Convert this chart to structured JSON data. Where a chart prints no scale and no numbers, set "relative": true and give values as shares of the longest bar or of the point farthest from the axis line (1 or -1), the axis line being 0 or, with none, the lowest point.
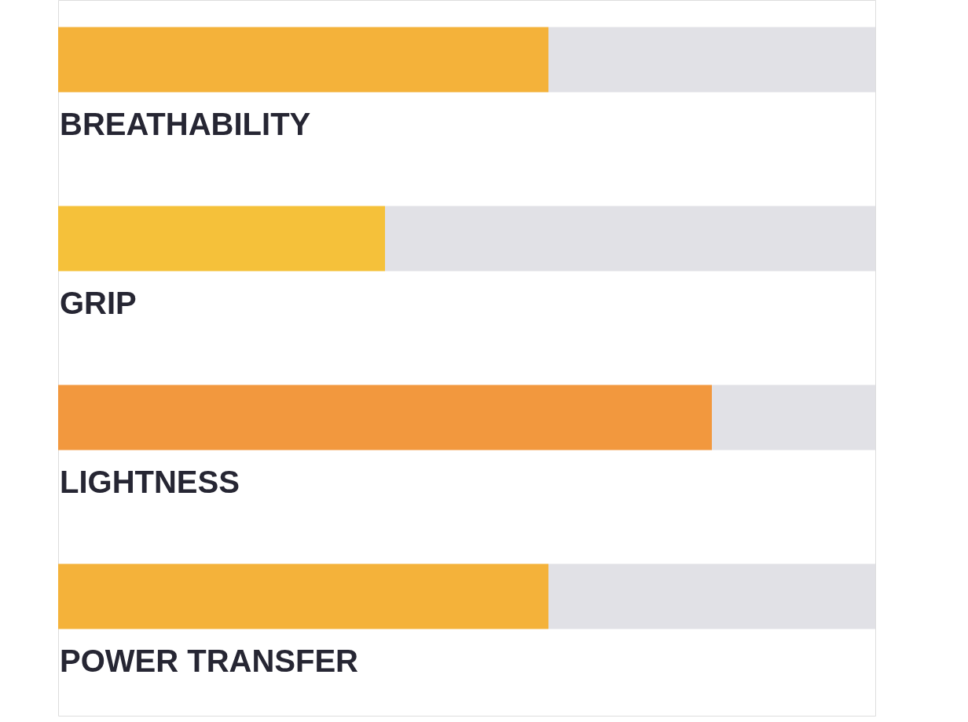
{
  "chart_data": {
    "type": "bar",
    "orientation": "horizontal",
    "stacked": true,
    "relative": true,
    "categories": [
      "BREATHABILITY",
      "GRIP",
      "LIGHTNESS",
      "POWER TRANSFER"
    ],
    "series": [
      {
        "colors": [
          "#f4b23a",
          "#f5c13a",
          "#f2983e",
          "#f4b23a"
        ],
        "values": [
          0.6,
          0.4,
          0.8,
          0.6
        ]
      },
      {
        "color": "#e1e1e6",
        "values": [
          0.4,
          0.6,
          0.2,
          0.4
        ]
      }
    ]
  }
}
